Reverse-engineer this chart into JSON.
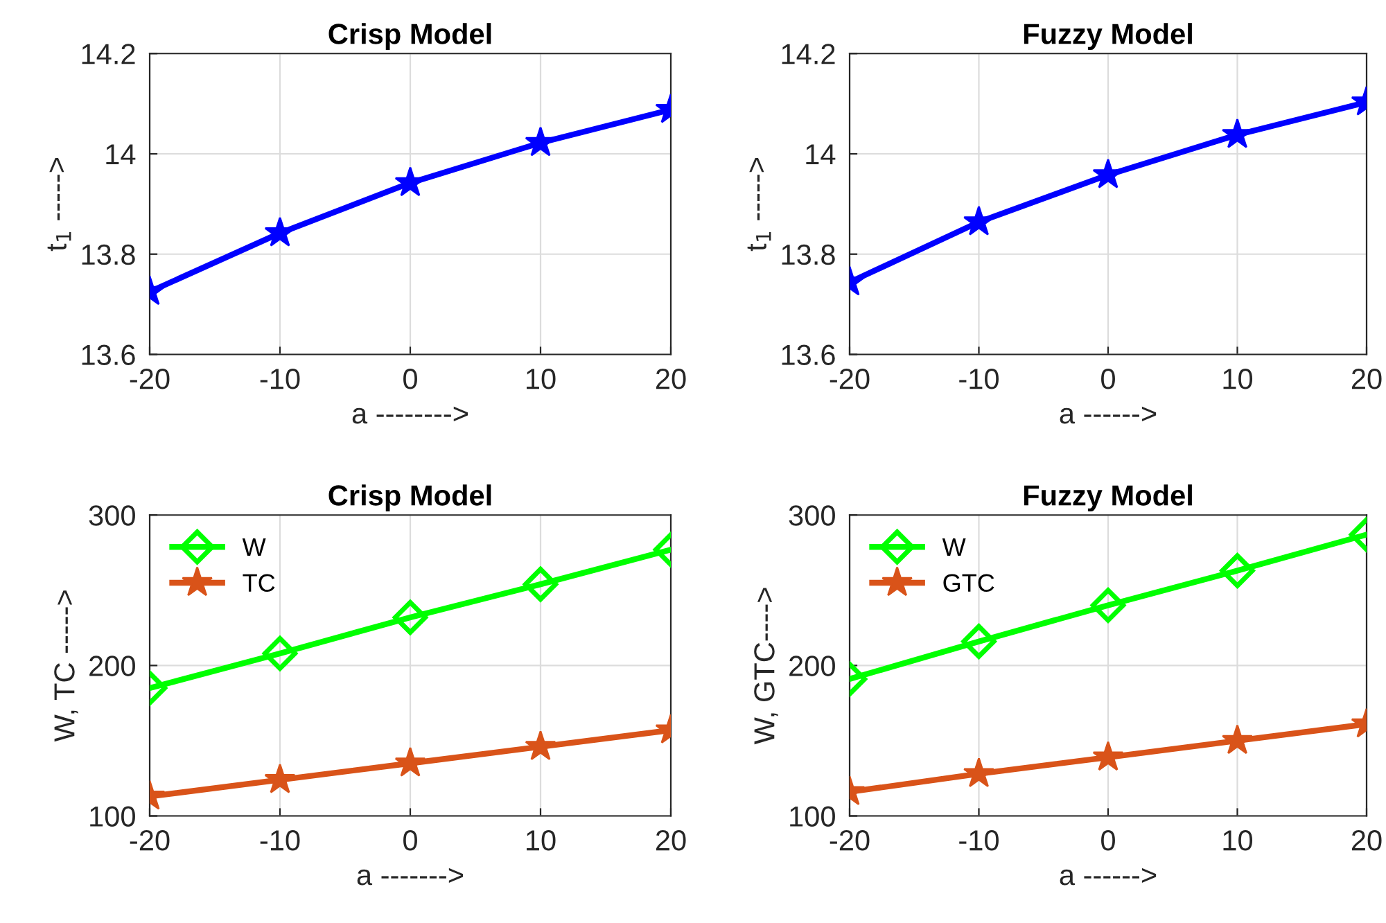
{
  "chart_data": [
    {
      "type": "line",
      "title": "Crisp Model",
      "xlabel": "a -------->",
      "ylabel": "t$_{1}$ ----->",
      "x": [
        -20,
        -10,
        0,
        10,
        20
      ],
      "xlim": [
        -20,
        20
      ],
      "xticks": [
        -20,
        -10,
        0,
        10,
        20
      ],
      "ylim": [
        13.6,
        14.2
      ],
      "yticks": [
        13.6,
        13.8,
        14,
        14.2
      ],
      "grid": true,
      "legend": false,
      "series": [
        {
          "color": "#0000ff",
          "marker": "star",
          "values": [
            13.725,
            13.842,
            13.942,
            14.022,
            14.088
          ]
        }
      ]
    },
    {
      "type": "line",
      "title": "Fuzzy Model",
      "xlabel": "a ------>",
      "ylabel": "t$_{1}$ ----->",
      "x": [
        -20,
        -10,
        0,
        10,
        20
      ],
      "xlim": [
        -20,
        20
      ],
      "xticks": [
        -20,
        -10,
        0,
        10,
        20
      ],
      "ylim": [
        13.6,
        14.2
      ],
      "yticks": [
        13.6,
        13.8,
        14,
        14.2
      ],
      "grid": true,
      "legend": false,
      "series": [
        {
          "color": "#0000ff",
          "marker": "star",
          "values": [
            13.744,
            13.864,
            13.958,
            14.038,
            14.103
          ]
        }
      ]
    },
    {
      "type": "line",
      "title": "Crisp Model",
      "xlabel": "a ------->",
      "ylabel": "W, TC ----->",
      "x": [
        -20,
        -10,
        0,
        10,
        20
      ],
      "xlim": [
        -20,
        20
      ],
      "xticks": [
        -20,
        -10,
        0,
        10,
        20
      ],
      "ylim": [
        100,
        300
      ],
      "yticks": [
        100,
        200,
        300
      ],
      "grid": true,
      "legend": "top left",
      "series": [
        {
          "name": "W",
          "color": "#00ff00",
          "marker": "diamond",
          "values": [
            185,
            208,
            232,
            254,
            277
          ]
        },
        {
          "name": "TC",
          "color": "#d95319",
          "marker": "star",
          "values": [
            113,
            124,
            135,
            146,
            157
          ]
        }
      ]
    },
    {
      "type": "line",
      "title": "Fuzzy Model",
      "xlabel": "a ------>",
      "ylabel": "W, GTC---->",
      "x": [
        -20,
        -10,
        0,
        10,
        20
      ],
      "xlim": [
        -20,
        20
      ],
      "xticks": [
        -20,
        -10,
        0,
        10,
        20
      ],
      "ylim": [
        100,
        300
      ],
      "yticks": [
        100,
        200,
        300
      ],
      "grid": true,
      "legend": "top left",
      "series": [
        {
          "name": "W",
          "color": "#00ff00",
          "marker": "diamond",
          "values": [
            191,
            216,
            240,
            263,
            287
          ]
        },
        {
          "name": "GTC",
          "color": "#d95319",
          "marker": "star",
          "values": [
            116,
            128,
            139,
            150,
            161
          ]
        }
      ]
    }
  ]
}
